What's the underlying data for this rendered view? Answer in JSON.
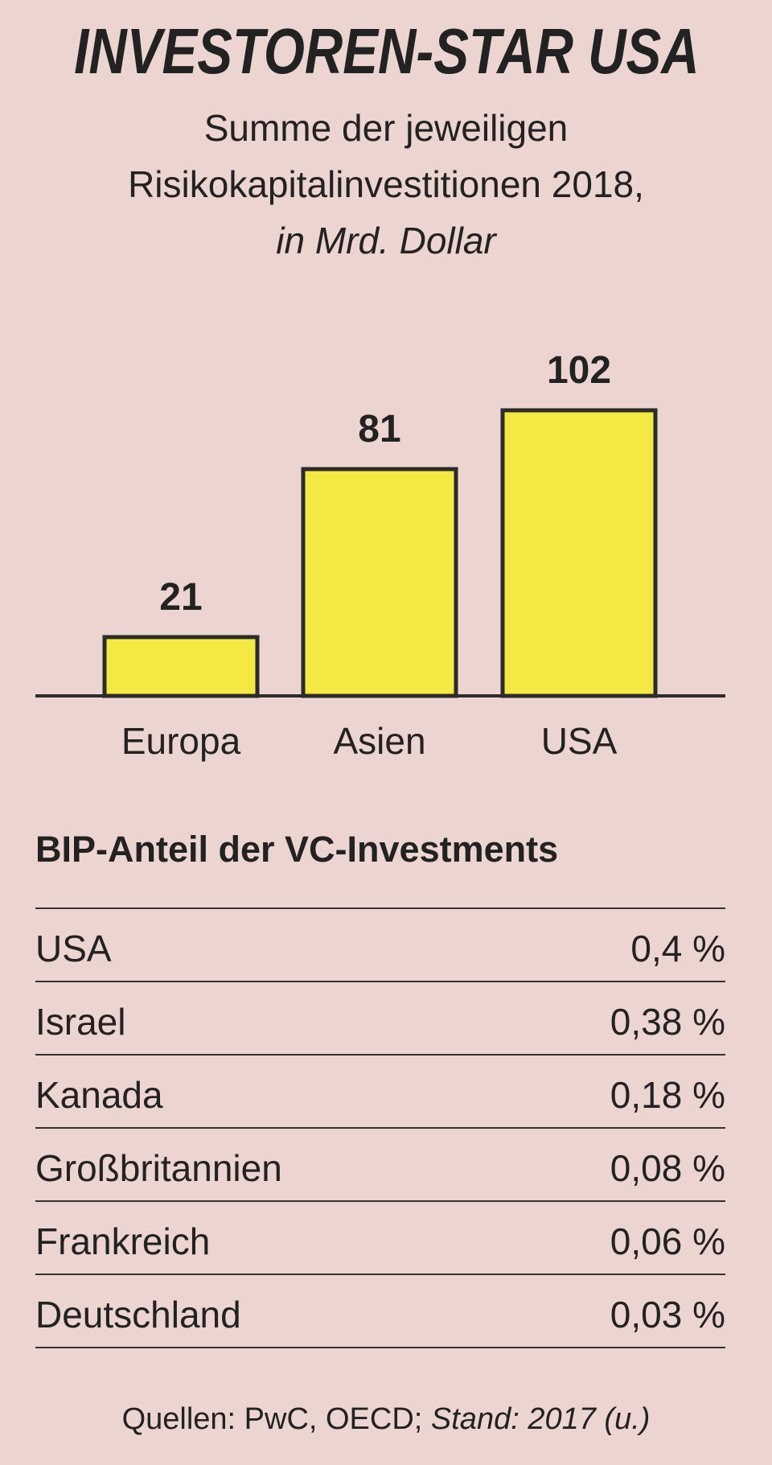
{
  "colors": {
    "background": "#ecd5d0",
    "bar_fill": "#f4e842",
    "bar_stroke": "#2b2b2b",
    "text": "#222222"
  },
  "chart_data": {
    "type": "bar",
    "title": "INVESTOREN-STAR USA",
    "subtitle": [
      "Summe der jeweiligen",
      "Risikokapitalinvestitionen 2018,"
    ],
    "unit_label": "in Mrd. Dollar",
    "categories": [
      "Europa",
      "Asien",
      "USA"
    ],
    "values": [
      21,
      81,
      102
    ],
    "ylim": [
      0,
      102
    ],
    "grid": false,
    "xlabel": "",
    "ylabel": ""
  },
  "table": {
    "heading": "BIP-Anteil der VC-Investments",
    "rows": [
      {
        "country": "USA",
        "value": "0,4 %"
      },
      {
        "country": "Israel",
        "value": "0,38 %"
      },
      {
        "country": "Kanada",
        "value": "0,18 %"
      },
      {
        "country": "Großbritannien",
        "value": "0,08 %"
      },
      {
        "country": "Frankreich",
        "value": "0,06 %"
      },
      {
        "country": "Deutschland",
        "value": "0,03 %"
      }
    ]
  },
  "source": {
    "prefix": "Quellen: PwC, OECD; ",
    "italic": "Stand: 2017 (u.)"
  }
}
